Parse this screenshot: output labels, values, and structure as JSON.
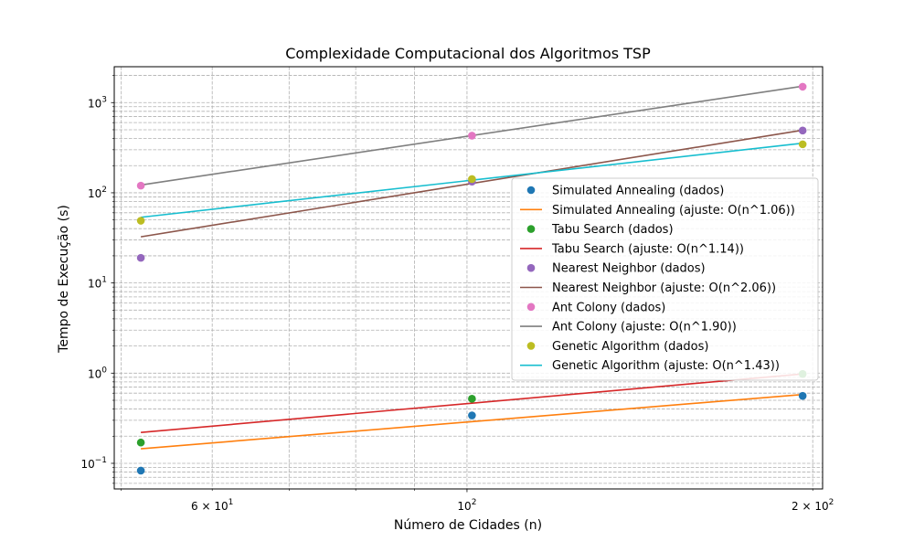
{
  "chart_data": {
    "type": "scatter",
    "title": "Complexidade Computacional dos Algoritmos TSP",
    "xlabel": "Número de Cidades (n)",
    "ylabel": "Tempo de Execução (s)",
    "xscale": "log",
    "yscale": "log",
    "xlim": [
      49.3,
      204
    ],
    "ylim": [
      0.052,
      2500
    ],
    "grid": true,
    "grid_style": "dashed",
    "legend_position": "center-right",
    "x_tick_labels": [
      {
        "value": 60,
        "mantissa": "6",
        "exponent": "1"
      },
      {
        "value": 100,
        "mantissa": "",
        "exponent": "2"
      },
      {
        "value": 200,
        "mantissa": "2",
        "exponent": "2"
      }
    ],
    "y_tick_labels": [
      {
        "value": 0.1,
        "exponent": "−1"
      },
      {
        "value": 1,
        "exponent": "0"
      },
      {
        "value": 10,
        "exponent": "1"
      },
      {
        "value": 100,
        "exponent": "2"
      },
      {
        "value": 1000,
        "exponent": "3"
      }
    ],
    "series": [
      {
        "name": "Simulated Annealing (dados)",
        "kind": "scatter",
        "color": "#1f77b4",
        "x": [
          52,
          101,
          196
        ],
        "y": [
          0.083,
          0.34,
          0.56
        ]
      },
      {
        "name": "Simulated Annealing (ajuste: O(n^1.06))",
        "kind": "line",
        "color": "#ff7f0e",
        "x": [
          52,
          196
        ],
        "y": [
          0.145,
          0.58
        ]
      },
      {
        "name": "Tabu Search (dados)",
        "kind": "scatter",
        "color": "#2ca02c",
        "x": [
          52,
          101,
          196
        ],
        "y": [
          0.17,
          0.52,
          0.98
        ]
      },
      {
        "name": "Tabu Search (ajuste: O(n^1.14))",
        "kind": "line",
        "color": "#d62728",
        "x": [
          52,
          196
        ],
        "y": [
          0.22,
          0.98
        ]
      },
      {
        "name": "Nearest Neighbor (dados)",
        "kind": "scatter",
        "color": "#9467bd",
        "x": [
          52,
          101,
          196
        ],
        "y": [
          19,
          133,
          490
        ]
      },
      {
        "name": "Nearest Neighbor (ajuste: O(n^2.06))",
        "kind": "line",
        "color": "#8c564b",
        "x": [
          52,
          196
        ],
        "y": [
          32.5,
          495
        ]
      },
      {
        "name": "Ant Colony (dados)",
        "kind": "scatter",
        "color": "#e377c2",
        "x": [
          52,
          101,
          196
        ],
        "y": [
          120,
          430,
          1500
        ]
      },
      {
        "name": "Ant Colony (ajuste: O(n^1.90))",
        "kind": "line",
        "color": "#7f7f7f",
        "x": [
          52,
          196
        ],
        "y": [
          122,
          1520
        ]
      },
      {
        "name": "Genetic Algorithm (dados)",
        "kind": "scatter",
        "color": "#bcbd22",
        "x": [
          52,
          101,
          196
        ],
        "y": [
          49,
          142,
          345
        ]
      },
      {
        "name": "Genetic Algorithm (ajuste: O(n^1.43))",
        "kind": "line",
        "color": "#17becf",
        "x": [
          52,
          196
        ],
        "y": [
          53.5,
          355
        ]
      }
    ]
  }
}
